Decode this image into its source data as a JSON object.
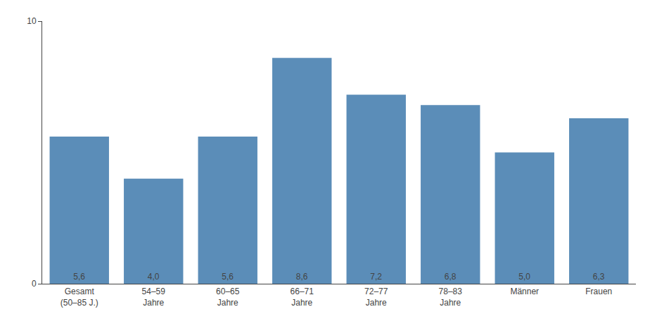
{
  "chart_data": {
    "type": "bar",
    "categories": [
      "Gesamt\n(50–85 J.)",
      "54–59\nJahre",
      "60–65\nJahre",
      "66–71\nJahre",
      "72–77\nJahre",
      "78–83\nJahre",
      "Männer",
      "Frauen"
    ],
    "values": [
      5.6,
      4.0,
      5.6,
      8.6,
      7.2,
      6.8,
      5.0,
      6.3
    ],
    "value_labels": [
      "5,6",
      "4,0",
      "5,6",
      "8,6",
      "7,2",
      "6,8",
      "5,0",
      "6,3"
    ],
    "data_labels": true,
    "color": "#5b8db8",
    "ylim": [
      0,
      10
    ],
    "yticks": [
      0,
      10
    ],
    "grid": false
  }
}
